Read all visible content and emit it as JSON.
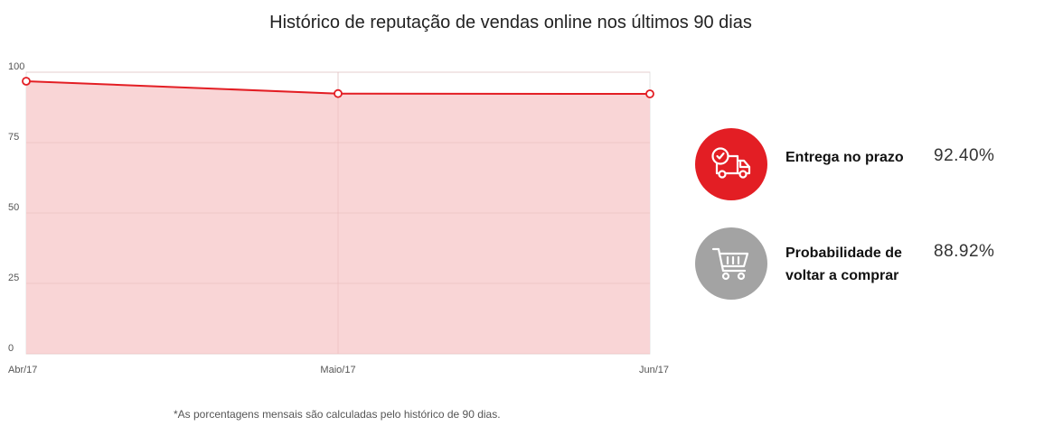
{
  "title": "Histórico de reputação de vendas online nos últimos 90 dias",
  "chart_data": {
    "type": "area",
    "categories": [
      "Abr/17",
      "Maio/17",
      "Jun/17"
    ],
    "series": [
      {
        "values": [
          96.8,
          92.4,
          92.3
        ]
      }
    ],
    "ylim": [
      0,
      100
    ],
    "yticks": [
      "0",
      "25",
      "50",
      "75",
      "100"
    ],
    "grid": true,
    "colors": {
      "line": "#e31e24",
      "fill": "#f9d3d4",
      "grid": "#e3e3e3"
    }
  },
  "stats": [
    {
      "label": "Entrega no prazo",
      "value": "92.40%",
      "icon": "delivery-truck-clock-icon",
      "color": "#e31e24"
    },
    {
      "label": "Probabilidade de voltar a comprar",
      "value": "88.92%",
      "icon": "shopping-cart-icon",
      "color": "#a3a3a3"
    }
  ],
  "footnote": "*As porcentagens mensais são calculadas pelo histórico de 90 dias."
}
